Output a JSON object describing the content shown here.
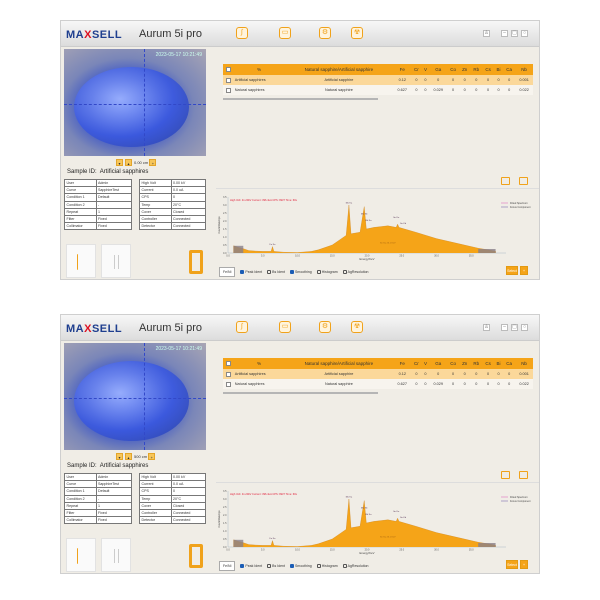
{
  "header": {
    "brand": "MAXSELL",
    "app_title": "Aurum 5i pro",
    "toolbar_icons": [
      "spectrum-icon",
      "folder-icon",
      "settings-gear-icon",
      "radiation-icon"
    ],
    "window_icons": [
      "user-icon",
      "minimize-icon",
      "restore-icon",
      "close-icon"
    ]
  },
  "accent_color": "#f5a418",
  "screens": [
    {
      "camera": {
        "timestamp": "2023-05-17 10:21:49",
        "scale": "0.00 cm"
      },
      "sample_id_label": "Sample ID:",
      "sample_id": "Artificial sapphires",
      "info_left": [
        [
          "User",
          "Admin"
        ],
        [
          "Curve",
          "SapphireTest"
        ],
        [
          "Condition 1",
          "Default"
        ],
        [
          "Condition 2",
          "-"
        ],
        [
          "Repeat",
          "1"
        ],
        [
          "Filter",
          "Fixed"
        ],
        [
          "Collimator",
          "Fixed"
        ]
      ],
      "info_right": [
        [
          "High Volt",
          "0.00 kV"
        ],
        [
          "Current",
          "0.0 uA"
        ],
        [
          "CPS",
          "0"
        ],
        [
          "Temp",
          "20°C"
        ],
        [
          "Cover",
          "Closed"
        ],
        [
          "Controller",
          "Connected"
        ],
        [
          "Detector",
          "Connected"
        ]
      ],
      "counter": "0"
    },
    {
      "camera": {
        "timestamp": "2023-05-17 10:21:49",
        "scale": "500 cm"
      },
      "sample_id_label": "Sample ID:",
      "sample_id": "Artificial sapphires",
      "info_left": [
        [
          "User",
          "Admin"
        ],
        [
          "Curve",
          "SapphireTest"
        ],
        [
          "Condition 1",
          "Default"
        ],
        [
          "Condition 2",
          "-"
        ],
        [
          "Repeat",
          "1"
        ],
        [
          "Filter",
          "Fixed"
        ],
        [
          "Collimator",
          "Fixed"
        ]
      ],
      "info_right": [
        [
          "High Volt",
          "0.00 kV"
        ],
        [
          "Current",
          "0.0 uA"
        ],
        [
          "CPS",
          "0"
        ],
        [
          "Temp",
          "20°C"
        ],
        [
          "Cover",
          "Closed"
        ],
        [
          "Controller",
          "Connected"
        ],
        [
          "Detector",
          "Connected"
        ]
      ],
      "counter": "0"
    }
  ],
  "results": {
    "columns": [
      "%",
      "Natural sapphire/Artificial sapphire",
      "Fe",
      "Cr",
      "V",
      "Ga",
      "Co",
      "Zn",
      "Rb",
      "Cs",
      "Bi",
      "Ca",
      "Nb"
    ],
    "rows": [
      [
        "Artificial sapphires",
        "Artificial sapphire",
        "0.12",
        "0",
        "0",
        "0",
        "0",
        "0",
        "0",
        "0",
        "0",
        "0",
        "0.001"
      ],
      [
        "Natural sapphires",
        "Natural sapphire",
        "0.627",
        "0",
        "0",
        "0.029",
        "0",
        "0",
        "0",
        "0",
        "0",
        "0",
        "0.022"
      ]
    ]
  },
  "chart_data": {
    "type": "area",
    "info_text": "High Volt: 41.20kV  Current: 396.4uA  CPS: 9937  Time: 60s",
    "xlabel": "Energy/KeV",
    "ylabel": "Count/Rate/cps",
    "xlim": [
      0,
      40
    ],
    "ylim": [
      0,
      3.5
    ],
    "xticks": [
      "0.0",
      "5.0",
      "10.0",
      "15.0",
      "20.0",
      "25.0",
      "30.0",
      "35.0"
    ],
    "yticks": [
      "0.0",
      "0.5",
      "1.0",
      "1.5",
      "2.0",
      "2.5",
      "3.0",
      "3.5"
    ],
    "legend": [
      "Fitted Spectrum",
      "Focus Component"
    ],
    "legend_position": "top-right",
    "series": [
      {
        "x": [
          0.8,
          1.5,
          2,
          3,
          4,
          5,
          6.2,
          6.4,
          6.6,
          8,
          10,
          12,
          13,
          14,
          15,
          15.5,
          16,
          17,
          17.4,
          17.7,
          19,
          19.6,
          19.9,
          21,
          23,
          24.2,
          24.4,
          24.6,
          27,
          30,
          33,
          36,
          38.5
        ],
        "y": [
          0.45,
          0.35,
          0.3,
          0.15,
          0.12,
          0.1,
          0.1,
          0.4,
          0.1,
          0.05,
          0.03,
          0.1,
          0.2,
          0.35,
          0.5,
          0.65,
          0.8,
          1.1,
          3.0,
          1.2,
          1.3,
          2.9,
          1.5,
          1.6,
          1.7,
          1.6,
          1.8,
          1.6,
          1.3,
          0.9,
          0.6,
          0.3,
          0.12
        ]
      }
    ],
    "peak_labels": [
      {
        "x": 6.4,
        "y": 0.5,
        "text": "Fe Ka"
      },
      {
        "x": 17.4,
        "y": 3.1,
        "text": "Mo Ka"
      },
      {
        "x": 19.6,
        "y": 2.4,
        "text": "Mo Kb"
      },
      {
        "x": 20.2,
        "y": 2.0,
        "text": "Rh Ka"
      },
      {
        "x": 24.2,
        "y": 2.2,
        "text": "Sn Ka"
      },
      {
        "x": 25.2,
        "y": 1.8,
        "text": "Sn Kb"
      }
    ],
    "center_label": "Sn Ka 25.1 KeV"
  },
  "chart_controls": {
    "select": "Fe/Ni",
    "options": [
      {
        "label": "Peak Ident",
        "checked": true
      },
      {
        "label": "Bs Ident",
        "checked": false
      },
      {
        "label": "Smoothing",
        "checked": true
      },
      {
        "label": "Histogram",
        "checked": false
      },
      {
        "label": "AgResolution",
        "checked": false
      }
    ],
    "buttons": [
      "Select",
      "+"
    ]
  }
}
